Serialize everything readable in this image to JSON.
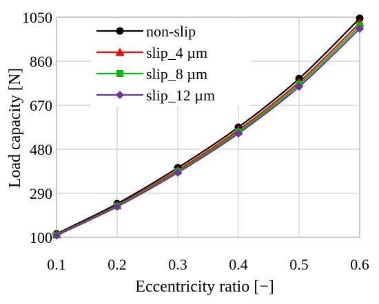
{
  "chart_data": {
    "type": "line",
    "title": "",
    "xlabel": "Eccentricity ratio [−]",
    "ylabel": "Load capacity [N]",
    "x": [
      0.1,
      0.2,
      0.3,
      0.4,
      0.5,
      0.6
    ],
    "x_tick_labels": [
      "0.1",
      "0.2",
      "0.3",
      "0.4",
      "0.5",
      "0.6"
    ],
    "y_tick_labels": [
      "100",
      "290",
      "480",
      "670",
      "860",
      "1050"
    ],
    "xlim": [
      0.1,
      0.6
    ],
    "ylim": [
      100,
      1050
    ],
    "grid": true,
    "legend_position": "top-left",
    "series": [
      {
        "name": "non-slip",
        "color": "#000000",
        "marker": "circle",
        "values": [
          115,
          245,
          400,
          575,
          785,
          1045
        ]
      },
      {
        "name": "slip_4 µm",
        "color": "#ff0000",
        "marker": "triangle",
        "values": [
          112,
          238,
          390,
          563,
          770,
          1025
        ]
      },
      {
        "name": "slip_8 µm",
        "color": "#00c000",
        "marker": "square",
        "values": [
          110,
          235,
          384,
          555,
          760,
          1012
        ]
      },
      {
        "name": "slip_12 µm",
        "color": "#7030a0",
        "marker": "diamond",
        "values": [
          108,
          232,
          379,
          548,
          750,
          1000
        ]
      }
    ]
  }
}
